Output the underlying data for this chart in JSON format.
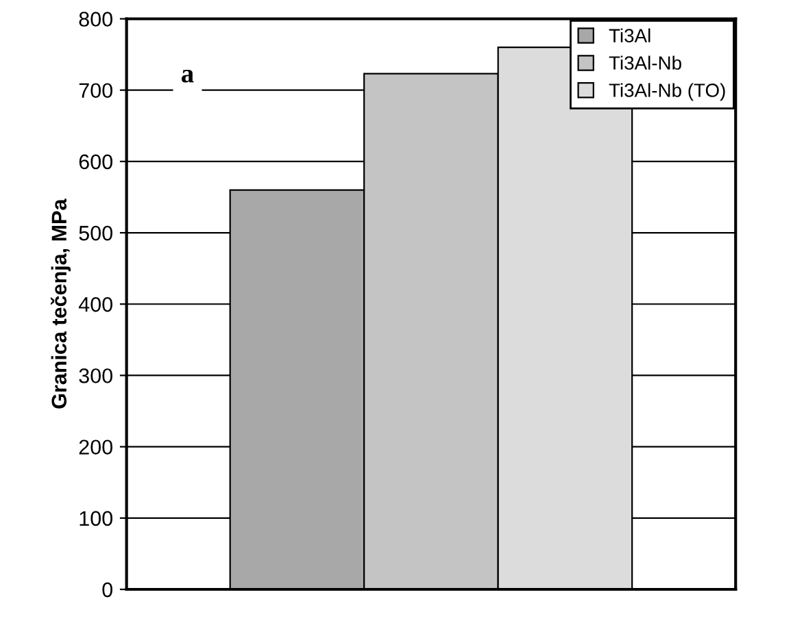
{
  "chart_data": {
    "type": "bar",
    "ylabel": "Granica tečenja, MPa",
    "annotations": [
      "a"
    ],
    "categories": [
      null
    ],
    "series": [
      {
        "name": "Ti3Al",
        "color": "#a8a8a8",
        "values": [
          560
        ]
      },
      {
        "name": "Ti3Al-Nb",
        "color": "#c4c4c4",
        "values": [
          723
        ]
      },
      {
        "name": "Ti3Al-Nb (TO)",
        "color": "#dcdcdc",
        "values": [
          760
        ]
      }
    ],
    "ylim": [
      0,
      800
    ],
    "yticks": [
      0,
      100,
      200,
      300,
      400,
      500,
      600,
      700,
      800
    ],
    "grid": "y",
    "legend": "top right"
  }
}
